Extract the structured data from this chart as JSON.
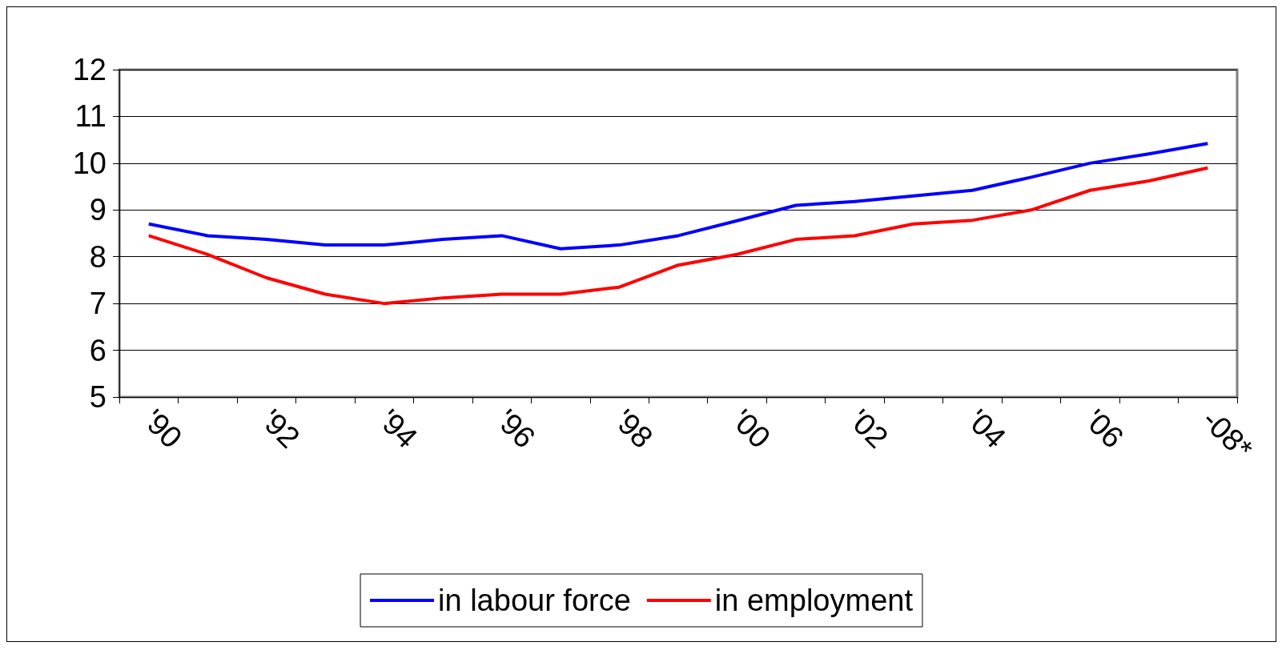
{
  "chart_data": {
    "type": "line",
    "categories": [
      "'90",
      null,
      "'92",
      null,
      "'94",
      null,
      "'96",
      null,
      "'98",
      null,
      "'00",
      null,
      "'02",
      null,
      "'04",
      null,
      "'06",
      null,
      "-08*"
    ],
    "series": [
      {
        "name": "in labour force",
        "color": "#0000ff",
        "values": [
          8.7,
          8.45,
          8.37,
          8.25,
          8.25,
          8.37,
          8.45,
          8.17,
          8.25,
          8.45,
          8.77,
          9.1,
          9.18,
          9.3,
          9.42,
          9.7,
          10.0,
          10.2,
          10.42
        ]
      },
      {
        "name": "in employment",
        "color": "#ff0000",
        "values": [
          8.45,
          8.05,
          7.55,
          7.2,
          7.0,
          7.12,
          7.2,
          7.2,
          7.35,
          7.82,
          8.05,
          8.37,
          8.45,
          8.7,
          8.78,
          9.0,
          9.42,
          9.62,
          9.9
        ]
      }
    ],
    "ylim": [
      5,
      12
    ],
    "yticks": [
      5,
      6,
      7,
      8,
      9,
      10,
      11,
      12
    ],
    "grid": "y",
    "legend": "bottom",
    "marker": "none",
    "line_style": "solid"
  }
}
